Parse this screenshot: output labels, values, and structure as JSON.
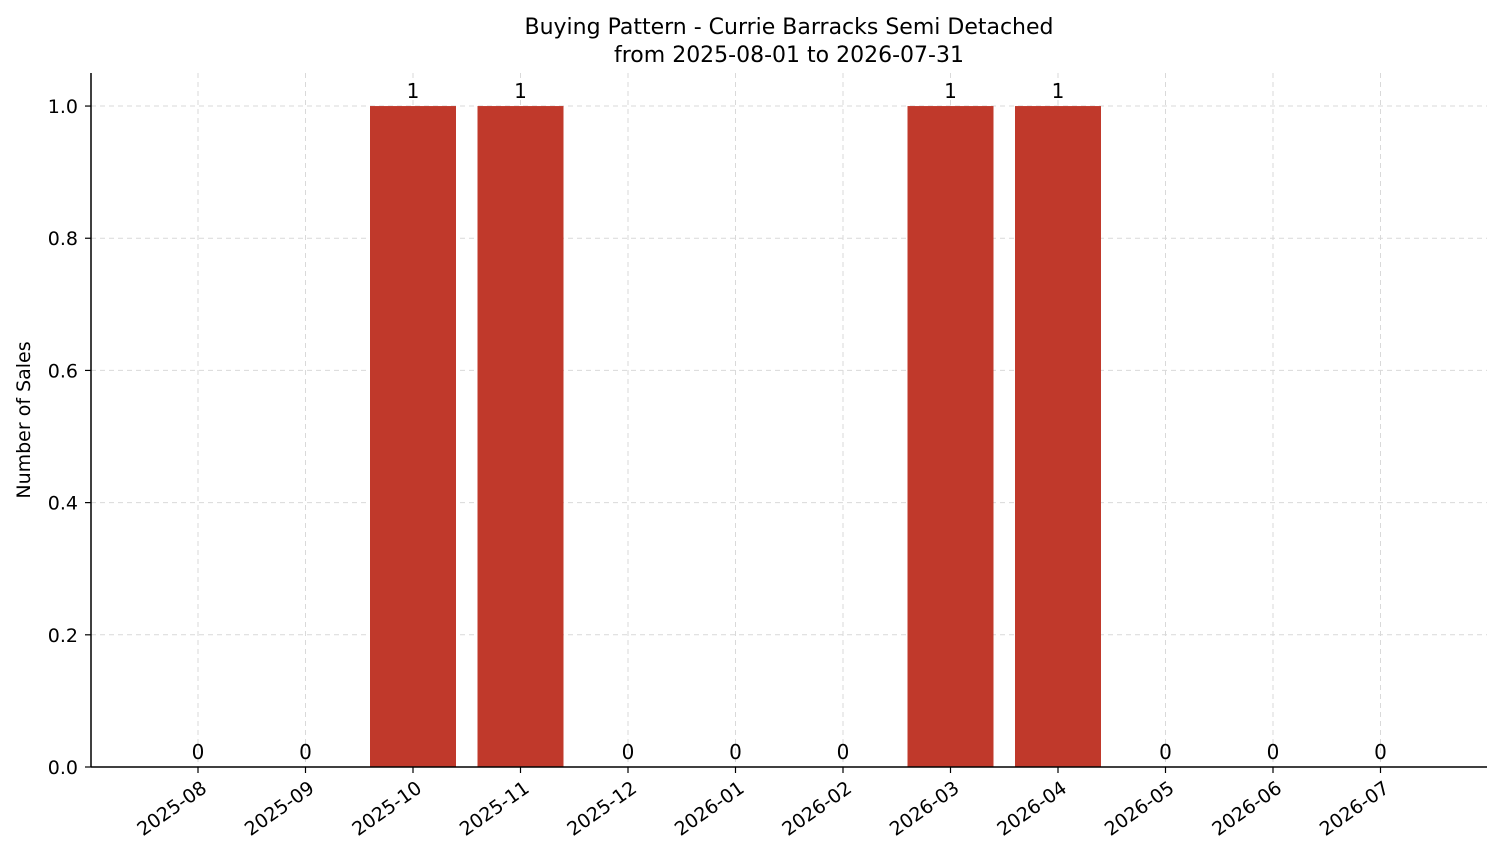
{
  "chart_data": {
    "type": "bar",
    "title": "Buying Pattern - Currie Barracks Semi Detached",
    "subtitle": "from 2025-08-01 to 2026-07-31",
    "xlabel": "",
    "ylabel": "Number of Sales",
    "categories": [
      "2025-08",
      "2025-09",
      "2025-10",
      "2025-11",
      "2025-12",
      "2026-01",
      "2026-02",
      "2026-03",
      "2026-04",
      "2026-05",
      "2026-06",
      "2026-07"
    ],
    "values": [
      0,
      0,
      1,
      1,
      0,
      0,
      0,
      1,
      1,
      0,
      0,
      0
    ],
    "data_labels": [
      "0",
      "0",
      "1",
      "1",
      "0",
      "0",
      "0",
      "1",
      "1",
      "0",
      "0",
      "0"
    ],
    "yticks": [
      "0.0",
      "0.2",
      "0.4",
      "0.6",
      "0.8",
      "1.0"
    ],
    "ylim": [
      0,
      1.05
    ],
    "bar_color": "#c0392b",
    "grid": true
  }
}
